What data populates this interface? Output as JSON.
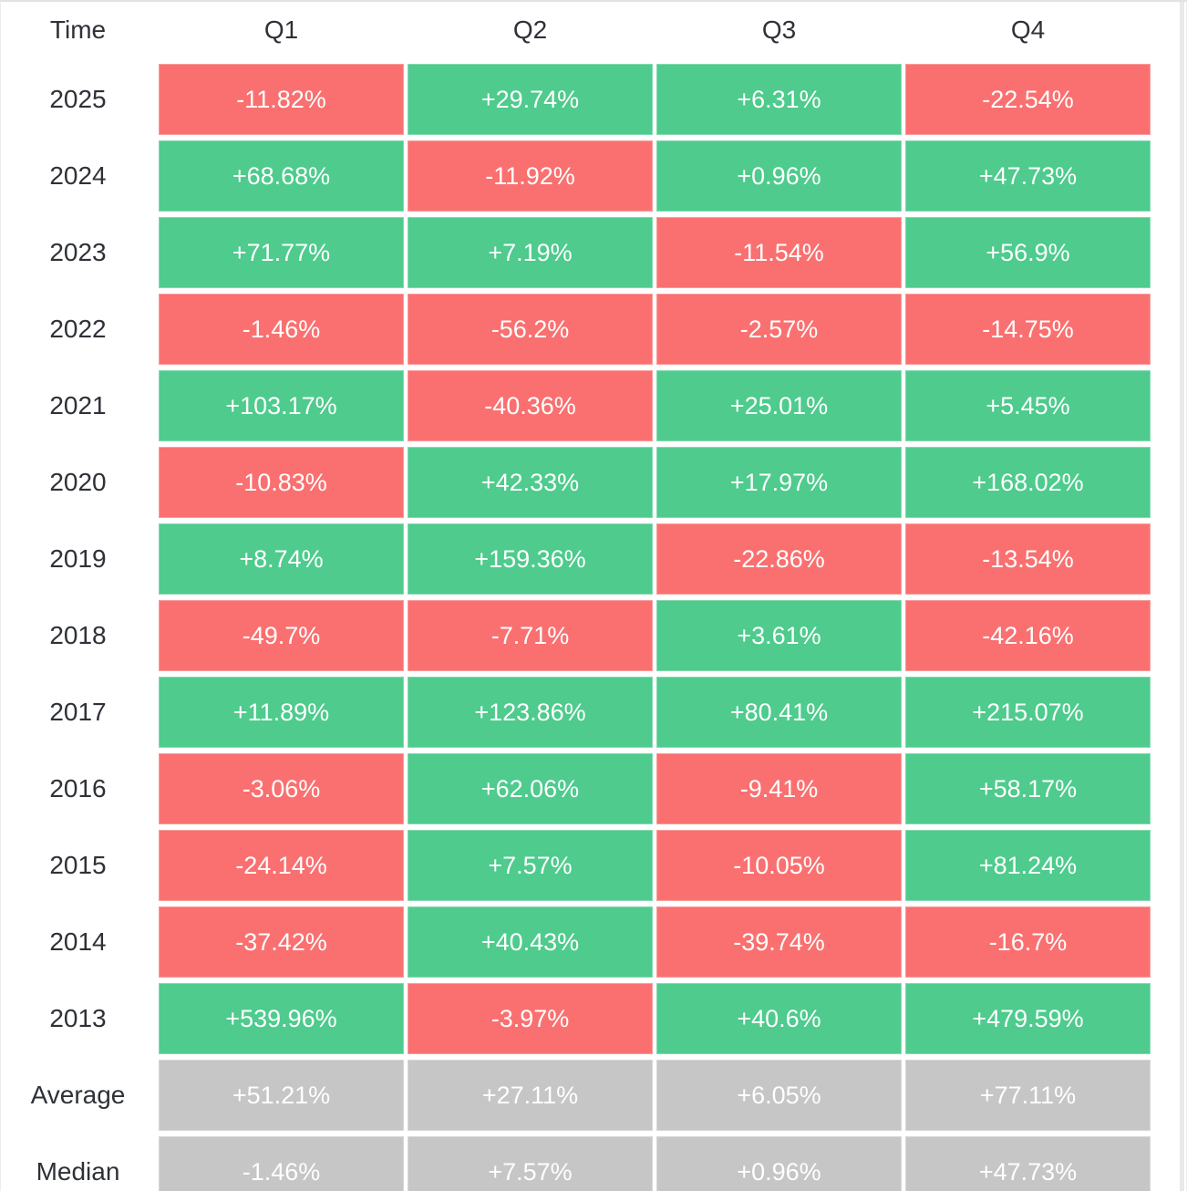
{
  "colors": {
    "positive": "#4ecb8d",
    "negative": "#fa7070",
    "neutral": "#c6c6c6",
    "label_text": "#2e3137",
    "cell_text": "#ffffff",
    "background": "#ffffff",
    "border": "#e2e2e2",
    "scrollbar": "#e9e9e9"
  },
  "table": {
    "columns": [
      "Time",
      "Q1",
      "Q2",
      "Q3",
      "Q4"
    ],
    "rows": [
      {
        "label": "2025",
        "cells": [
          {
            "text": "-11.82%",
            "state": "negative"
          },
          {
            "text": "+29.74%",
            "state": "positive"
          },
          {
            "text": "+6.31%",
            "state": "positive"
          },
          {
            "text": "-22.54%",
            "state": "negative"
          }
        ]
      },
      {
        "label": "2024",
        "cells": [
          {
            "text": "+68.68%",
            "state": "positive"
          },
          {
            "text": "-11.92%",
            "state": "negative"
          },
          {
            "text": "+0.96%",
            "state": "positive"
          },
          {
            "text": "+47.73%",
            "state": "positive"
          }
        ]
      },
      {
        "label": "2023",
        "cells": [
          {
            "text": "+71.77%",
            "state": "positive"
          },
          {
            "text": "+7.19%",
            "state": "positive"
          },
          {
            "text": "-11.54%",
            "state": "negative"
          },
          {
            "text": "+56.9%",
            "state": "positive"
          }
        ]
      },
      {
        "label": "2022",
        "cells": [
          {
            "text": "-1.46%",
            "state": "negative"
          },
          {
            "text": "-56.2%",
            "state": "negative"
          },
          {
            "text": "-2.57%",
            "state": "negative"
          },
          {
            "text": "-14.75%",
            "state": "negative"
          }
        ]
      },
      {
        "label": "2021",
        "cells": [
          {
            "text": "+103.17%",
            "state": "positive"
          },
          {
            "text": "-40.36%",
            "state": "negative"
          },
          {
            "text": "+25.01%",
            "state": "positive"
          },
          {
            "text": "+5.45%",
            "state": "positive"
          }
        ]
      },
      {
        "label": "2020",
        "cells": [
          {
            "text": "-10.83%",
            "state": "negative"
          },
          {
            "text": "+42.33%",
            "state": "positive"
          },
          {
            "text": "+17.97%",
            "state": "positive"
          },
          {
            "text": "+168.02%",
            "state": "positive"
          }
        ]
      },
      {
        "label": "2019",
        "cells": [
          {
            "text": "+8.74%",
            "state": "positive"
          },
          {
            "text": "+159.36%",
            "state": "positive"
          },
          {
            "text": "-22.86%",
            "state": "negative"
          },
          {
            "text": "-13.54%",
            "state": "negative"
          }
        ]
      },
      {
        "label": "2018",
        "cells": [
          {
            "text": "-49.7%",
            "state": "negative"
          },
          {
            "text": "-7.71%",
            "state": "negative"
          },
          {
            "text": "+3.61%",
            "state": "positive"
          },
          {
            "text": "-42.16%",
            "state": "negative"
          }
        ]
      },
      {
        "label": "2017",
        "cells": [
          {
            "text": "+11.89%",
            "state": "positive"
          },
          {
            "text": "+123.86%",
            "state": "positive"
          },
          {
            "text": "+80.41%",
            "state": "positive"
          },
          {
            "text": "+215.07%",
            "state": "positive"
          }
        ]
      },
      {
        "label": "2016",
        "cells": [
          {
            "text": "-3.06%",
            "state": "negative"
          },
          {
            "text": "+62.06%",
            "state": "positive"
          },
          {
            "text": "-9.41%",
            "state": "negative"
          },
          {
            "text": "+58.17%",
            "state": "positive"
          }
        ]
      },
      {
        "label": "2015",
        "cells": [
          {
            "text": "-24.14%",
            "state": "negative"
          },
          {
            "text": "+7.57%",
            "state": "positive"
          },
          {
            "text": "-10.05%",
            "state": "negative"
          },
          {
            "text": "+81.24%",
            "state": "positive"
          }
        ]
      },
      {
        "label": "2014",
        "cells": [
          {
            "text": "-37.42%",
            "state": "negative"
          },
          {
            "text": "+40.43%",
            "state": "positive"
          },
          {
            "text": "-39.74%",
            "state": "negative"
          },
          {
            "text": "-16.7%",
            "state": "negative"
          }
        ]
      },
      {
        "label": "2013",
        "cells": [
          {
            "text": "+539.96%",
            "state": "positive"
          },
          {
            "text": "-3.97%",
            "state": "negative"
          },
          {
            "text": "+40.6%",
            "state": "positive"
          },
          {
            "text": "+479.59%",
            "state": "positive"
          }
        ]
      },
      {
        "label": "Average",
        "cells": [
          {
            "text": "+51.21%",
            "state": "neutral"
          },
          {
            "text": "+27.11%",
            "state": "neutral"
          },
          {
            "text": "+6.05%",
            "state": "neutral"
          },
          {
            "text": "+77.11%",
            "state": "neutral"
          }
        ]
      },
      {
        "label": "Median",
        "cells": [
          {
            "text": "-1.46%",
            "state": "neutral"
          },
          {
            "text": "+7.57%",
            "state": "neutral"
          },
          {
            "text": "+0.96%",
            "state": "neutral"
          },
          {
            "text": "+47.73%",
            "state": "neutral"
          }
        ]
      }
    ]
  },
  "chart_data": {
    "type": "heatmap",
    "columns": [
      "Q1",
      "Q2",
      "Q3",
      "Q4"
    ],
    "row_labels": [
      "2025",
      "2024",
      "2023",
      "2022",
      "2021",
      "2020",
      "2019",
      "2018",
      "2017",
      "2016",
      "2015",
      "2014",
      "2013",
      "Average",
      "Median"
    ],
    "values_percent": [
      [
        -11.82,
        29.74,
        6.31,
        -22.54
      ],
      [
        68.68,
        -11.92,
        0.96,
        47.73
      ],
      [
        71.77,
        7.19,
        -11.54,
        56.9
      ],
      [
        -1.46,
        -56.2,
        -2.57,
        -14.75
      ],
      [
        103.17,
        -40.36,
        25.01,
        5.45
      ],
      [
        -10.83,
        42.33,
        17.97,
        168.02
      ],
      [
        8.74,
        159.36,
        -22.86,
        -13.54
      ],
      [
        -49.7,
        -7.71,
        3.61,
        -42.16
      ],
      [
        11.89,
        123.86,
        80.41,
        215.07
      ],
      [
        -3.06,
        62.06,
        -9.41,
        58.17
      ],
      [
        -24.14,
        7.57,
        -10.05,
        81.24
      ],
      [
        -37.42,
        40.43,
        -39.74,
        -16.7
      ],
      [
        539.96,
        -3.97,
        40.6,
        479.59
      ],
      [
        51.21,
        27.11,
        6.05,
        77.11
      ],
      [
        -1.46,
        7.57,
        0.96,
        47.73
      ]
    ],
    "legend": "green = positive quarter, red = negative quarter, gray = summary rows (Average, Median)",
    "grid": "white gaps between cells",
    "first_column_header": "Time"
  }
}
